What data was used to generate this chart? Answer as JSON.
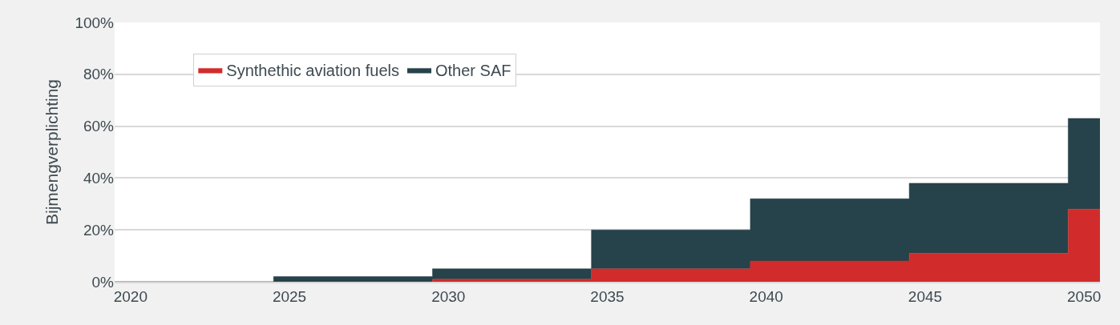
{
  "chart_data": {
    "type": "area",
    "stacked": true,
    "ylabel": "Bijmengverplichting",
    "x": [
      2019.5,
      2024.5,
      2029.5,
      2034.5,
      2039.5,
      2044.5,
      2049.5,
      2050.5
    ],
    "series": [
      {
        "name": "Synthethic aviation fuels",
        "color": "#d22b2b",
        "values": [
          0,
          0,
          1,
          5,
          8,
          11,
          28,
          28
        ]
      },
      {
        "name": "Other SAF",
        "color": "#26424a",
        "values": [
          0,
          2,
          4,
          15,
          24,
          27,
          35,
          35
        ]
      }
    ],
    "xlim": [
      2019.5,
      2050.5
    ],
    "xticks": [
      2020,
      2025,
      2030,
      2035,
      2040,
      2045,
      2050
    ],
    "ylim": [
      0,
      100
    ],
    "yticks": [
      {
        "value": 0,
        "label": "0%"
      },
      {
        "value": 20,
        "label": "20%"
      },
      {
        "value": 40,
        "label": "40%"
      },
      {
        "value": 60,
        "label": "60%"
      },
      {
        "value": 80,
        "label": "80%"
      },
      {
        "value": 100,
        "label": "100%"
      }
    ],
    "grid": "y",
    "legend": "top left"
  }
}
